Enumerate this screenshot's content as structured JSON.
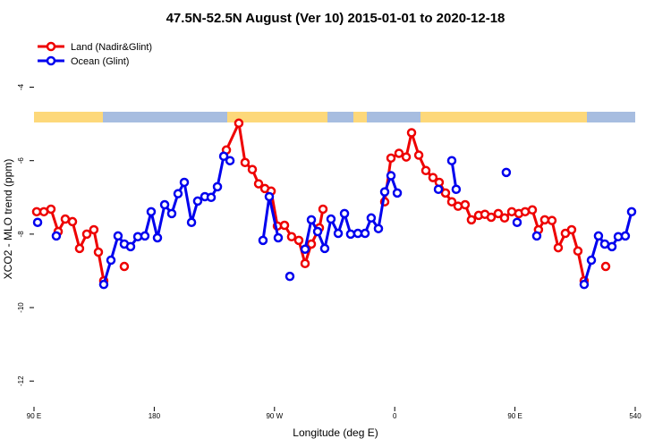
{
  "chart_data": {
    "type": "line",
    "title": "47.5N-52.5N August (Ver 10)   2015-01-01 to 2020-12-18",
    "x_label": "Longitude (deg E)",
    "y_label": "XCO2 - MLO trend (ppm)",
    "xlim": [
      90,
      540
    ],
    "xticks": [
      {
        "value": 90,
        "label": "90 E"
      },
      180,
      {
        "value": 270,
        "label": "90 W"
      },
      {
        "value": 360,
        "label": "0"
      },
      {
        "value": 450,
        "label": "90 E"
      },
      540
    ],
    "ylim": [
      -12.7,
      -2.6
    ],
    "yticks": [
      -4,
      -6,
      -8,
      -10,
      -12
    ],
    "legend": "top-left",
    "series": [
      {
        "name": "Land (Nadir&Glint)",
        "color": "#ee0000",
        "x": [
          92.0,
          97.4,
          102.7,
          108.1,
          113.4,
          118.8,
          124.1,
          129.5,
          134.8,
          138.2,
          142.2,
          null,
          157.6,
          null,
          234.0,
          243.3,
          248.0,
          253.4,
          258.1,
          262.8,
          267.5,
          272.2,
          277.5,
          282.8,
          288.2,
          292.9,
          297.6,
          303.6,
          306.3,
          null,
          352.5,
          357.2,
          363.2,
          368.6,
          372.6,
          378.0,
          383.3,
          388.6,
          393.3,
          398.0,
          402.7,
          407.4,
          412.7,
          417.4,
          422.8,
          427.5,
          432.2,
          437.5,
          442.2,
          447.6,
          452.9,
          457.6,
          463.0,
          467.6,
          472.3,
          477.7,
          482.4,
          487.7,
          492.4,
          497.1,
          501.8,
          null,
          517.9
        ],
        "values": [
          -7.39,
          -7.39,
          -7.32,
          -7.93,
          -7.59,
          -7.66,
          -8.39,
          -8.0,
          -7.88,
          -8.49,
          -9.27,
          null,
          -8.88,
          null,
          -5.71,
          -4.98,
          -6.05,
          -6.24,
          -6.63,
          -6.76,
          -6.83,
          -7.78,
          -7.76,
          -8.07,
          -8.17,
          -8.8,
          -8.27,
          -7.83,
          -7.32,
          null,
          -7.12,
          -5.93,
          -5.8,
          -5.9,
          -5.24,
          -5.85,
          -6.27,
          -6.46,
          -6.59,
          -6.88,
          -7.12,
          -7.24,
          -7.2,
          -7.61,
          -7.49,
          -7.46,
          -7.54,
          -7.44,
          -7.56,
          -7.39,
          -7.44,
          -7.39,
          -7.34,
          -7.88,
          -7.61,
          -7.63,
          -8.37,
          -7.98,
          -7.88,
          -8.46,
          -9.27,
          null,
          -8.88
        ]
      },
      {
        "name": "Ocean (Glint)",
        "color": "#0000ee",
        "x": [
          92.7,
          null,
          106.7,
          null,
          142.2,
          147.6,
          152.9,
          157.6,
          162.3,
          167.7,
          173.0,
          177.7,
          182.4,
          187.8,
          193.1,
          197.8,
          202.5,
          207.9,
          212.5,
          217.9,
          222.6,
          227.3,
          232.0,
          236.7,
          null,
          261.4,
          266.1,
          272.8,
          null,
          281.5,
          null,
          292.9,
          297.6,
          302.3,
          307.6,
          312.3,
          317.7,
          322.4,
          327.0,
          332.4,
          337.8,
          342.4,
          347.8,
          352.5,
          357.2,
          361.9,
          null,
          392.7,
          null,
          402.7,
          406.0,
          null,
          443.5,
          null,
          451.6,
          null,
          466.3,
          null,
          501.8,
          507.2,
          512.5,
          517.2,
          522.6,
          527.3,
          532.6,
          537.3
        ],
        "values": [
          -7.68,
          null,
          -8.05,
          null,
          -9.37,
          -8.71,
          -8.05,
          -8.27,
          -8.34,
          -8.07,
          -8.05,
          -7.39,
          -8.1,
          -7.2,
          -7.44,
          -6.9,
          -6.59,
          -7.68,
          -7.1,
          -6.98,
          -7.0,
          -6.71,
          -5.88,
          -6.0,
          null,
          -8.17,
          -6.98,
          -8.1,
          null,
          -9.15,
          null,
          -8.41,
          -7.61,
          -7.93,
          -8.39,
          -7.59,
          -7.98,
          -7.44,
          -8.0,
          -7.98,
          -7.98,
          -7.56,
          -7.85,
          -6.85,
          -6.41,
          -6.88,
          null,
          -6.78,
          null,
          -6.0,
          -6.78,
          null,
          -6.32,
          null,
          -7.68,
          null,
          -8.05,
          null,
          -9.37,
          -8.71,
          -8.05,
          -8.27,
          -8.34,
          -8.07,
          -8.05,
          -7.39
        ]
      }
    ]
  }
}
